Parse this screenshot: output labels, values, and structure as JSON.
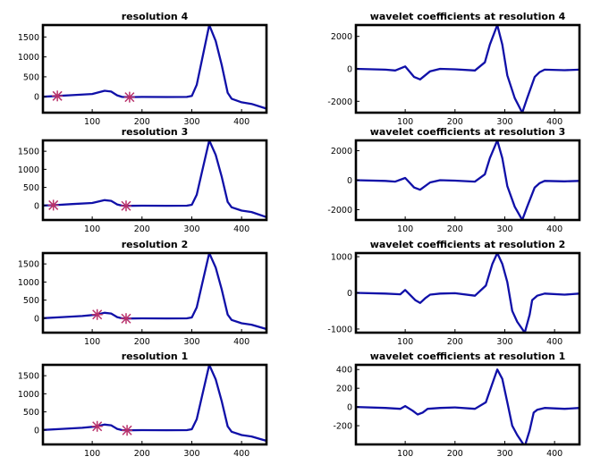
{
  "colors": {
    "line": "#1010a8",
    "marker": "#b8306a",
    "axes": "#000000"
  },
  "chart_data": [
    {
      "type": "line",
      "title": "resolution 4",
      "xlim": [
        1,
        450
      ],
      "ylim": [
        -400,
        1800
      ],
      "xticks": [
        100,
        200,
        300,
        400
      ],
      "yticks": [
        0,
        500,
        1000,
        1500
      ],
      "series": [
        {
          "x": [
            1,
            30,
            60,
            100,
            125,
            138,
            150,
            160,
            175,
            200,
            250,
            290,
            300,
            310,
            320,
            335,
            348,
            360,
            372,
            380,
            400,
            420,
            450
          ],
          "y": [
            0,
            20,
            40,
            70,
            150,
            130,
            35,
            -5,
            -10,
            -5,
            -8,
            -5,
            20,
            300,
            900,
            1800,
            1400,
            800,
            100,
            -50,
            -140,
            -180,
            -300
          ]
        }
      ],
      "markers": [
        {
          "x": 30,
          "y": 20
        },
        {
          "x": 175,
          "y": -10
        }
      ]
    },
    {
      "type": "line",
      "title": "wavelet coefficients at resolution 4",
      "xlim": [
        1,
        450
      ],
      "ylim": [
        -2700,
        2700
      ],
      "xticks": [
        100,
        200,
        300,
        400
      ],
      "yticks": [
        -2000,
        0,
        2000
      ],
      "series": [
        {
          "x": [
            1,
            60,
            80,
            100,
            118,
            130,
            150,
            170,
            200,
            240,
            260,
            270,
            285,
            295,
            305,
            320,
            335,
            345,
            360,
            370,
            380,
            420,
            450
          ],
          "y": [
            0,
            -50,
            -100,
            150,
            -500,
            -650,
            -150,
            0,
            -30,
            -100,
            400,
            1500,
            2700,
            1500,
            -400,
            -1800,
            -2700,
            -1800,
            -500,
            -200,
            -50,
            -80,
            -50
          ]
        }
      ]
    },
    {
      "type": "line",
      "title": "resolution 3",
      "xlim": [
        1,
        450
      ],
      "ylim": [
        -400,
        1800
      ],
      "xticks": [
        100,
        200,
        300,
        400
      ],
      "yticks": [
        0,
        500,
        1000,
        1500
      ],
      "series": [
        {
          "x": [
            1,
            25,
            60,
            100,
            125,
            138,
            150,
            160,
            170,
            200,
            250,
            290,
            300,
            310,
            320,
            335,
            348,
            360,
            372,
            380,
            400,
            420,
            450
          ],
          "y": [
            0,
            10,
            40,
            70,
            150,
            130,
            30,
            -5,
            -10,
            -5,
            -8,
            -5,
            20,
            300,
            900,
            1800,
            1400,
            800,
            100,
            -50,
            -140,
            -180,
            -320
          ]
        }
      ],
      "markers": [
        {
          "x": 22,
          "y": 10
        },
        {
          "x": 168,
          "y": -10
        }
      ]
    },
    {
      "type": "line",
      "title": "wavelet coefficients at resolution 3",
      "xlim": [
        1,
        450
      ],
      "ylim": [
        -2700,
        2700
      ],
      "xticks": [
        100,
        200,
        300,
        400
      ],
      "yticks": [
        -2000,
        0,
        2000
      ],
      "series": [
        {
          "x": [
            1,
            60,
            80,
            100,
            118,
            130,
            150,
            170,
            200,
            240,
            260,
            270,
            285,
            295,
            305,
            320,
            335,
            345,
            360,
            370,
            380,
            420,
            450
          ],
          "y": [
            0,
            -50,
            -100,
            150,
            -500,
            -650,
            -150,
            0,
            -30,
            -100,
            400,
            1500,
            2700,
            1500,
            -400,
            -1800,
            -2700,
            -1800,
            -500,
            -200,
            -50,
            -80,
            -50
          ]
        }
      ]
    },
    {
      "type": "line",
      "title": "resolution 2",
      "xlim": [
        1,
        450
      ],
      "ylim": [
        -400,
        1800
      ],
      "xticks": [
        100,
        200,
        300,
        400
      ],
      "yticks": [
        0,
        500,
        1000,
        1500
      ],
      "series": [
        {
          "x": [
            1,
            40,
            80,
            110,
            125,
            138,
            150,
            160,
            170,
            200,
            250,
            290,
            300,
            310,
            320,
            335,
            348,
            360,
            372,
            380,
            400,
            420,
            450
          ],
          "y": [
            0,
            30,
            60,
            100,
            150,
            130,
            30,
            -5,
            -10,
            -5,
            -8,
            -5,
            20,
            300,
            900,
            1800,
            1400,
            800,
            100,
            -50,
            -140,
            -180,
            -300
          ]
        }
      ],
      "markers": [
        {
          "x": 110,
          "y": 100
        },
        {
          "x": 168,
          "y": -10
        }
      ]
    },
    {
      "type": "line",
      "title": "wavelet coefficients at resolution 2",
      "xlim": [
        1,
        450
      ],
      "ylim": [
        -1100,
        1100
      ],
      "xticks": [
        100,
        200,
        300,
        400
      ],
      "yticks": [
        -1000,
        0,
        1000
      ],
      "series": [
        {
          "x": [
            1,
            60,
            90,
            100,
            120,
            130,
            140,
            150,
            170,
            200,
            240,
            262,
            275,
            285,
            295,
            305,
            315,
            325,
            340,
            350,
            355,
            365,
            380,
            420,
            450
          ],
          "y": [
            0,
            -20,
            -40,
            80,
            -200,
            -280,
            -150,
            -50,
            -20,
            -10,
            -80,
            200,
            800,
            1100,
            800,
            300,
            -500,
            -800,
            -1100,
            -600,
            -200,
            -80,
            -20,
            -50,
            -20
          ]
        }
      ]
    },
    {
      "type": "line",
      "title": "resolution 1",
      "xlim": [
        1,
        450
      ],
      "ylim": [
        -400,
        1800
      ],
      "xticks": [
        100,
        200,
        300,
        400
      ],
      "yticks": [
        0,
        500,
        1000,
        1500
      ],
      "series": [
        {
          "x": [
            1,
            40,
            80,
            110,
            125,
            138,
            150,
            160,
            170,
            200,
            250,
            290,
            300,
            310,
            320,
            335,
            348,
            360,
            372,
            380,
            400,
            420,
            450
          ],
          "y": [
            0,
            30,
            60,
            100,
            150,
            130,
            30,
            -5,
            -10,
            -5,
            -8,
            -5,
            20,
            300,
            900,
            1800,
            1400,
            800,
            100,
            -50,
            -140,
            -180,
            -300
          ]
        }
      ],
      "markers": [
        {
          "x": 110,
          "y": 100
        },
        {
          "x": 170,
          "y": -10
        }
      ]
    },
    {
      "type": "line",
      "title": "wavelet coefficients at resolution 1",
      "xlim": [
        1,
        450
      ],
      "ylim": [
        -400,
        450
      ],
      "xticks": [
        100,
        200,
        300,
        400
      ],
      "yticks": [
        -200,
        0,
        200,
        400
      ],
      "series": [
        {
          "x": [
            1,
            60,
            90,
            100,
            115,
            125,
            135,
            145,
            170,
            200,
            240,
            262,
            275,
            285,
            295,
            305,
            315,
            325,
            340,
            350,
            358,
            365,
            380,
            420,
            450
          ],
          "y": [
            0,
            -10,
            -20,
            10,
            -40,
            -80,
            -60,
            -20,
            -10,
            -5,
            -20,
            50,
            250,
            400,
            300,
            50,
            -200,
            -300,
            -420,
            -250,
            -60,
            -30,
            -10,
            -20,
            -10
          ]
        }
      ]
    }
  ]
}
